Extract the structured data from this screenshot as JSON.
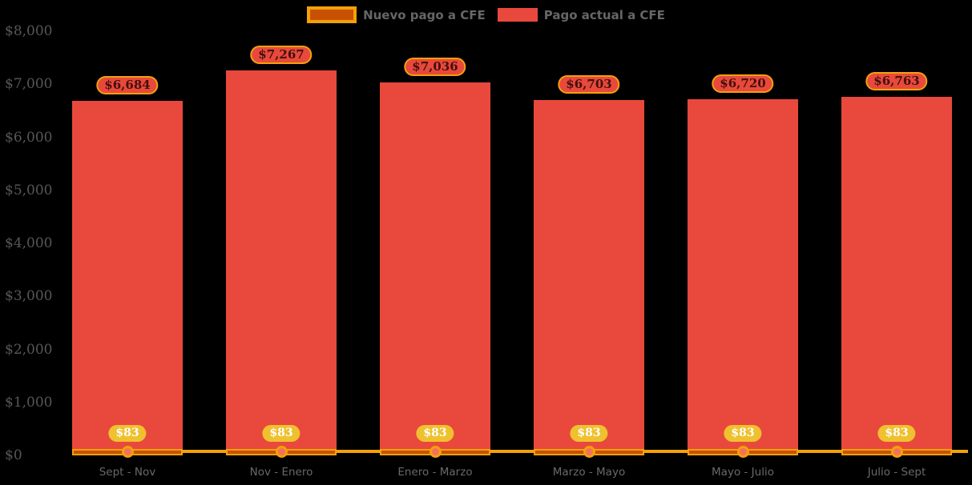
{
  "background": "#000000",
  "legend": {
    "items": [
      {
        "label": "Nuevo pago a CFE",
        "swatch_fill": "#c85104",
        "swatch_border": "#f2a10a"
      },
      {
        "label": "Pago actual a CFE",
        "swatch_fill": "#e8493c",
        "swatch_border": "#e8493c"
      }
    ]
  },
  "y_axis": {
    "ticks": [
      "$0",
      "$1,000",
      "$2,000",
      "$3,000",
      "$4,000",
      "$5,000",
      "$6,000",
      "$7,000",
      "$8,000"
    ]
  },
  "chart_data": {
    "type": "bar",
    "title": "",
    "categories": [
      "Sept - Nov",
      "Nov - Enero",
      "Enero - Marzo",
      "Marzo - Mayo",
      "Mayo - Julio",
      "Julio - Sept"
    ],
    "series": [
      {
        "name": "Nuevo pago a CFE",
        "type": "bar+line",
        "values": [
          83,
          83,
          83,
          83,
          83,
          83
        ],
        "data_labels": [
          "$83",
          "$83",
          "$83",
          "$83",
          "$83",
          "$83"
        ],
        "color": "#c85104",
        "border_color": "#f2a10a",
        "line_color": "#f2a10a",
        "marker_fill": "#f4705e",
        "label_bg": "#efc12f",
        "label_text_color": "#ffffff"
      },
      {
        "name": "Pago actual a CFE",
        "type": "bar",
        "values": [
          6684,
          7267,
          7036,
          6703,
          6720,
          6763
        ],
        "data_labels": [
          "$6,684",
          "$7,267",
          "$7,036",
          "$6,703",
          "$6,720",
          "$6,763"
        ],
        "color": "#e8493c",
        "label_bg": "#e8493c",
        "label_border": "#f2a10a",
        "label_text_color": "#42100a"
      }
    ],
    "ylim": [
      0,
      8000
    ],
    "ytick_interval": 1000,
    "grid": false,
    "legend_position": "top",
    "axis_text_color": "#696969",
    "background": "#000000"
  }
}
